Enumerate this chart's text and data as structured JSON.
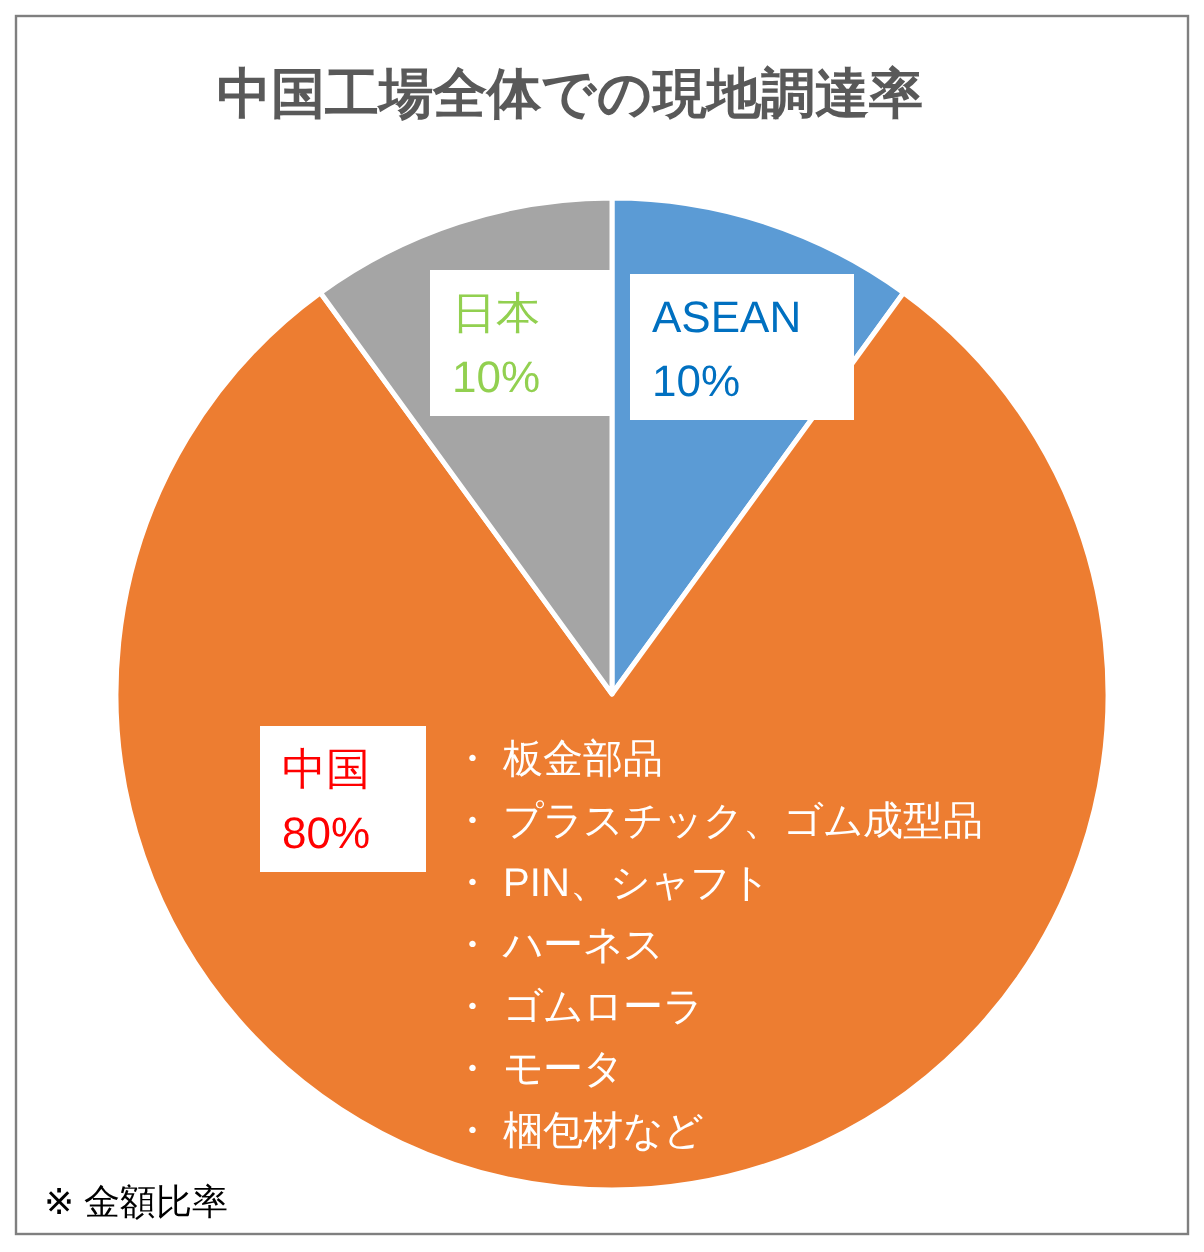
{
  "chart_data": {
    "type": "pie",
    "title": "中国工場全体での現地調達率",
    "categories": [
      "ASEAN",
      "中国",
      "日本"
    ],
    "values": [
      10,
      80,
      10
    ],
    "value_labels": [
      "10%",
      "80%",
      "10%"
    ],
    "colors": [
      "#5b9bd5",
      "#ed7d31",
      "#a5a5a5"
    ],
    "annotations": [
      "・ 板金部品",
      "・ プラスチック、ゴム成型品",
      "・ PIN、シャフト",
      "・ ハーネス",
      "・ ゴムローラ",
      "・ モータ",
      "・ 梱包材など",
      "※ 金額比率"
    ]
  }
}
